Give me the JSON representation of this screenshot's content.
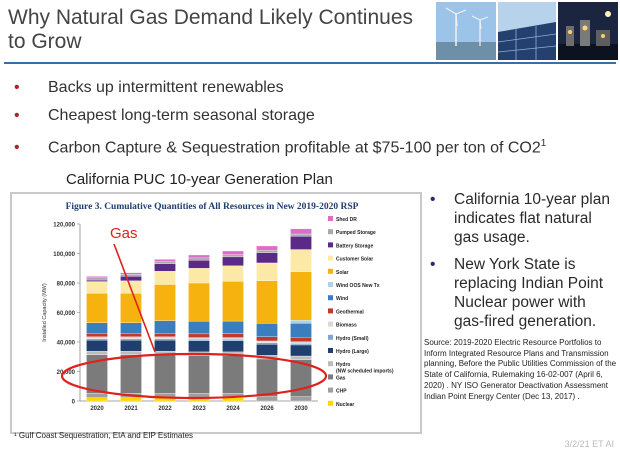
{
  "slide": {
    "title": "Why Natural Gas Demand Likely Continues to Grow",
    "bullets": [
      "Backs up intermittent renewables",
      "Cheapest long-term seasonal storage",
      "Carbon Capture & Sequestration profitable at $75-100 per ton of CO2"
    ],
    "bullet3_superscript": "1",
    "chart_heading": "California PUC 10-year Generation Plan",
    "side_bullets": [
      "California 10-year plan indicates flat natural gas usage.",
      "New York State is replacing Indian Point Nuclear power with gas-fired generation."
    ],
    "source": "Source: 2019-2020 Electric Resource Portfolios to Inform Integrated Resource Plans and Transmission planning, Before the Public Utilities Commission of the State of California, Rulemaking 16-02-007 (April 6, 2020) .  NY ISO Generator Deactivation Assessment Indian Point Energy Center (Dec 13, 2017) .",
    "footnote": "¹ Gulf Coast Sequestration, EIA and EIP Estimates",
    "stamp": "3/2/21 ET AI",
    "bullet_color": "#b22222"
  },
  "annotation": {
    "label": "Gas",
    "color": "#e0201c"
  },
  "chart_data": {
    "type": "bar",
    "stacked": true,
    "title": "Figure 3. Cumulative Quantities of All Resources in New 2019-2020 RSP",
    "ylabel": "Installed Capacity (MW)",
    "xlabel": "",
    "ylim": [
      0,
      120000
    ],
    "yticks": [
      0,
      20000,
      40000,
      60000,
      80000,
      100000,
      120000
    ],
    "ytick_labels": [
      "0",
      "20,000",
      "40,000",
      "60,000",
      "80,000",
      "100,000",
      "120,000"
    ],
    "grid": false,
    "legend_position": "right",
    "categories": [
      "2020",
      "2021",
      "2022",
      "2023",
      "2024",
      "2026",
      "2030"
    ],
    "series": [
      {
        "name": "Nuclear",
        "color": "#ffd700",
        "values": [
          2300,
          2300,
          2300,
          2300,
          2300,
          0,
          0
        ]
      },
      {
        "name": "CHP",
        "color": "#9f9f9f",
        "values": [
          3000,
          3000,
          3000,
          3000,
          3000,
          3000,
          3000
        ]
      },
      {
        "name": "Gas",
        "color": "#7b7b7b",
        "values": [
          26000,
          26000,
          26000,
          25500,
          25500,
          25500,
          25000
        ]
      },
      {
        "name": "Hydro (NW scheduled imports)",
        "color": "#bcbcbc",
        "values": [
          2500,
          2500,
          2500,
          2500,
          2500,
          2500,
          2500
        ]
      },
      {
        "name": "Hydro (Large)",
        "color": "#1f3f6e",
        "values": [
          7500,
          7500,
          7500,
          7500,
          7500,
          7500,
          7500
        ]
      },
      {
        "name": "Hydro (Small)",
        "color": "#7fa6cf",
        "values": [
          1000,
          1000,
          1000,
          1000,
          1000,
          1000,
          1000
        ]
      },
      {
        "name": "Biomass",
        "color": "#d9d9d9",
        "values": [
          1200,
          1200,
          1200,
          1200,
          1200,
          1200,
          1200
        ]
      },
      {
        "name": "Geothermal",
        "color": "#c0392b",
        "values": [
          2500,
          2500,
          2500,
          2500,
          2700,
          2900,
          3000
        ]
      },
      {
        "name": "Wind",
        "color": "#3a7ebf",
        "values": [
          7000,
          7000,
          8500,
          8500,
          8500,
          9000,
          9500
        ]
      },
      {
        "name": "Wind OOS New Tx",
        "color": "#aad4ea",
        "values": [
          0,
          0,
          0,
          0,
          0,
          0,
          2000
        ]
      },
      {
        "name": "Solar",
        "color": "#f6b20f",
        "values": [
          20000,
          20000,
          24500,
          26000,
          27000,
          29000,
          33000
        ]
      },
      {
        "name": "Customer Solar",
        "color": "#fde9a6",
        "values": [
          8000,
          8500,
          9000,
          10000,
          10500,
          12000,
          15000
        ]
      },
      {
        "name": "Battery Storage",
        "color": "#5b2a86",
        "values": [
          1000,
          3000,
          5000,
          5500,
          6000,
          7000,
          9000
        ]
      },
      {
        "name": "Pumped Storage",
        "color": "#a9a9a9",
        "values": [
          1500,
          1500,
          1500,
          1500,
          1500,
          1500,
          1500
        ]
      },
      {
        "name": "Shed DR",
        "color": "#e06cc9",
        "values": [
          1000,
          1000,
          1500,
          2000,
          2500,
          3000,
          3500
        ]
      }
    ]
  }
}
